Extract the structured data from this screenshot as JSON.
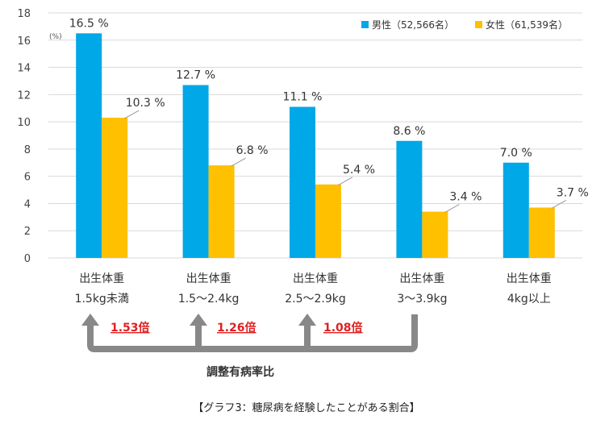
{
  "chart_data": {
    "type": "bar",
    "categories": [
      [
        "出生体重",
        "1.5kg未満"
      ],
      [
        "出生体重",
        "1.5～2.4kg"
      ],
      [
        "出生体重",
        "2.5～2.9kg"
      ],
      [
        "出生体重",
        "3～3.9kg"
      ],
      [
        "出生体重",
        "4kg以上"
      ]
    ],
    "series": [
      {
        "name": "男性（52,566名）",
        "color": "#00a8e8",
        "values": [
          16.5,
          12.7,
          11.1,
          8.6,
          7.0
        ],
        "labels": [
          "16.5 %",
          "12.7 %",
          "11.1 %",
          "8.6 %",
          "7.0 %"
        ]
      },
      {
        "name": "女性（61,539名）",
        "color": "#ffc000",
        "values": [
          10.3,
          6.8,
          5.4,
          3.4,
          3.7
        ],
        "labels": [
          "10.3 %",
          "6.8 %",
          "5.4 %",
          "3.4 %",
          "3.7 %"
        ]
      }
    ],
    "ylim": [
      0,
      18
    ],
    "yticks": [
      "0",
      "2",
      "4",
      "6",
      "8",
      "10",
      "12",
      "14",
      "16",
      "18"
    ],
    "yunit": "(%)",
    "grid": true,
    "legend_position": "top-right",
    "ratios": [
      "1.53倍",
      "1.26倍",
      "1.08倍"
    ],
    "ratio_caption": "調整有病率比",
    "caption": "【グラフ3：糖尿病を経験したことがある割合】"
  }
}
